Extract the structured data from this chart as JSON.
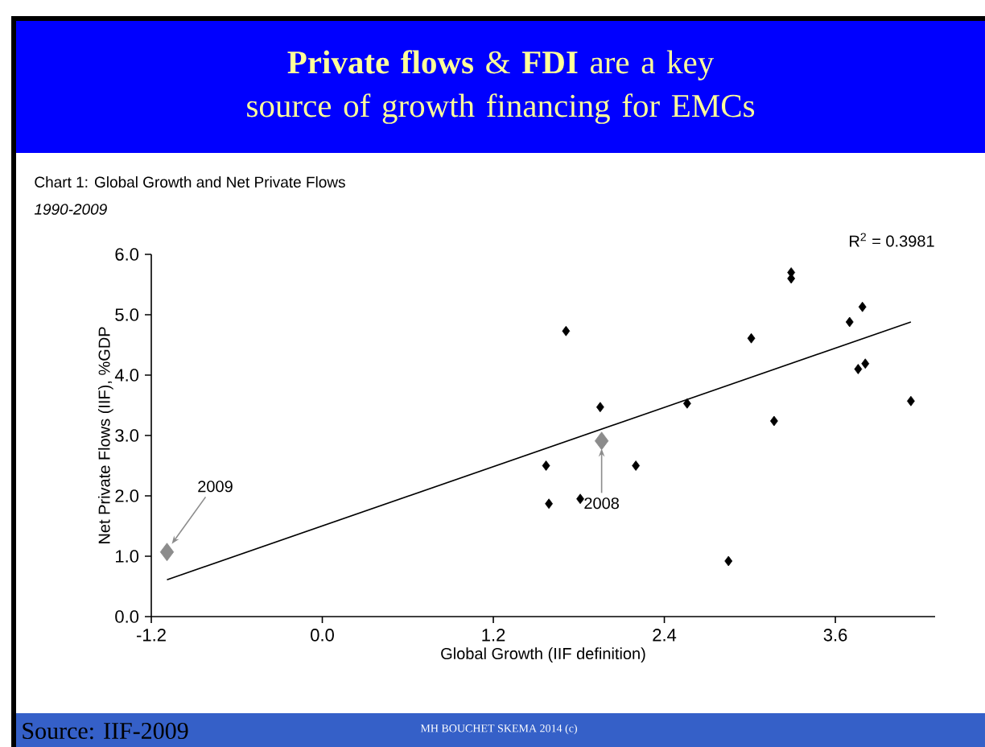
{
  "chart_data": {
    "type": "scatter",
    "title": "**Private flows** & **FDI** are a key source of growth financing for EMCs",
    "subtitle": "Chart 1: Global Growth and Net Private Flows",
    "xlabel": "Global Growth (IIF definition)",
    "ylabel": "Net Private Flows (IIF), %GDP",
    "marker": "diamond",
    "xlim": [
      -1.2,
      4.3
    ],
    "ylim": [
      0,
      6
    ],
    "xticks": [
      {
        "value": -1.2,
        "label": "-1.2"
      },
      {
        "value": 0,
        "label": "0.0"
      },
      {
        "value": 1.2,
        "label": "1.2"
      },
      {
        "value": 2.4,
        "label": "2.4"
      },
      {
        "value": 3.6,
        "label": "3.6"
      }
    ],
    "yticks": [
      {
        "value": 0,
        "label": "0.0"
      },
      {
        "value": 1,
        "label": "1.0"
      },
      {
        "value": 2,
        "label": "2.0"
      },
      {
        "value": 3,
        "label": "3.0"
      },
      {
        "value": 4,
        "label": "4.0"
      },
      {
        "value": 5,
        "label": "5.0"
      },
      {
        "value": 6,
        "label": "6.0"
      }
    ],
    "series": [
      {
        "color": "#000000",
        "x": [
          1.71,
          1.95,
          2.56,
          3.01,
          3.17,
          3.29,
          3.29,
          3.7,
          3.79,
          3.76,
          3.81,
          4.13,
          1.57,
          2.2,
          1.59,
          1.81,
          2.85
        ],
        "values": [
          4.73,
          3.47,
          3.53,
          4.61,
          3.24,
          5.7,
          5.6,
          4.88,
          5.13,
          4.1,
          4.19,
          3.57,
          2.5,
          2.5,
          1.87,
          1.95,
          0.92
        ]
      },
      {
        "color": "#8c8c8c",
        "x": [
          -1.09,
          1.96
        ],
        "values": [
          1.07,
          2.91
        ]
      },
      {
        "type": "line",
        "marker": "none",
        "color": "#000000",
        "x": [
          -1.09,
          4.13
        ],
        "values": [
          0.61,
          4.88
        ]
      }
    ],
    "annotations": [
      {
        "text": "1990-2009"
      },
      {
        "text": "2009",
        "x": -1.09,
        "y": 1.07
      },
      {
        "text": "2008",
        "x": 1.96,
        "y": 2.91
      },
      "R$^{2}$ = 0.3981",
      "Source: IIF-2009",
      "MH BOUCHET SKEMA 2014 (c)"
    ]
  }
}
